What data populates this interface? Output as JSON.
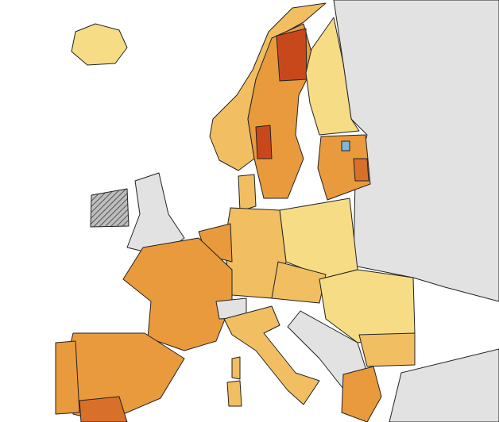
{
  "map": {
    "colors": {
      "sea": "#ffffff",
      "non_member": "#e2e2e2",
      "no_data_hatched": "#8a8a8a",
      "level_1": "#f7dc86",
      "level_2": "#f1be62",
      "level_3": "#e99a3d",
      "level_4": "#d8702a",
      "level_5": "#c9481b",
      "special": "#7fb6d9"
    }
  }
}
